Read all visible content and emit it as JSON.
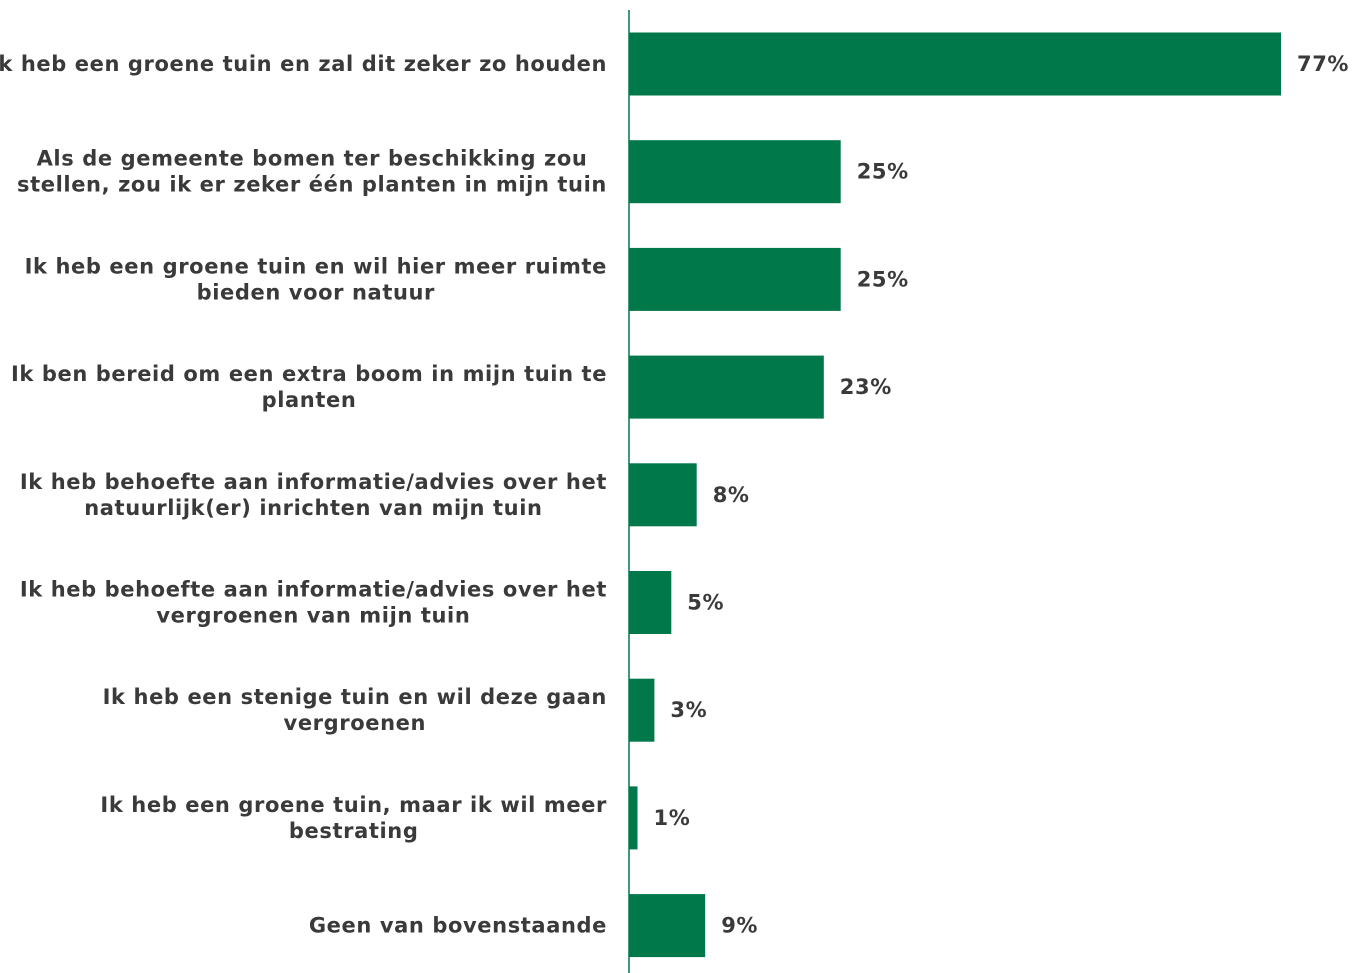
{
  "chart_data": {
    "type": "bar",
    "orientation": "horizontal",
    "categories": [
      [
        "Ik heb een groene tuin en zal dit zeker zo houden"
      ],
      [
        "Als de gemeente bomen ter beschikking zou",
        "stellen, zou ik er zeker één planten in mijn tuin"
      ],
      [
        "Ik heb een groene tuin en wil hier meer ruimte",
        "bieden voor natuur"
      ],
      [
        "Ik ben bereid om een extra boom in mijn tuin te",
        "planten"
      ],
      [
        "Ik heb behoefte aan informatie/advies over het",
        "natuurlijk(er) inrichten van mijn tuin"
      ],
      [
        "Ik heb behoefte aan informatie/advies over het",
        "vergroenen van mijn tuin"
      ],
      [
        "Ik heb een stenige tuin en wil deze gaan",
        "vergroenen"
      ],
      [
        "Ik heb een groene tuin, maar ik wil meer",
        "bestrating"
      ],
      [
        "Geen van bovenstaande"
      ]
    ],
    "values": [
      77,
      25,
      25,
      23,
      8,
      5,
      3,
      1,
      9
    ],
    "value_labels": [
      "77%",
      "25%",
      "25%",
      "23%",
      "8%",
      "5%",
      "3%",
      "1%",
      "9%"
    ],
    "unit": "%",
    "xlim": [
      0,
      77
    ],
    "grid": false,
    "legend": "none",
    "colors": {
      "bar": "#00784a",
      "axis": "#00784a",
      "text": "#3a3a3a"
    }
  }
}
